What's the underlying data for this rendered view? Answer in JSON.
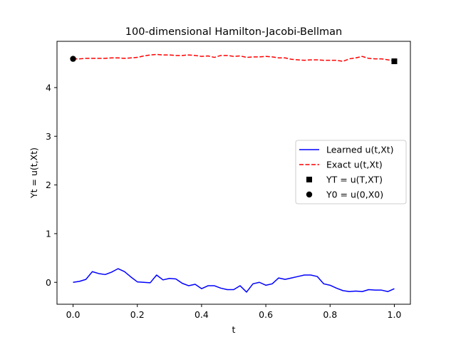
{
  "chart_data": {
    "type": "line",
    "title": "100-dimensional Hamilton-Jacobi-Bellman",
    "xlabel": "t",
    "ylabel": "Yt = u(t,Xt)",
    "xlim": [
      -0.05,
      1.05
    ],
    "ylim": [
      -0.45,
      4.95
    ],
    "xticks": [
      0.0,
      0.2,
      0.4,
      0.6,
      0.8,
      1.0
    ],
    "xtick_labels": [
      "0.0",
      "0.2",
      "0.4",
      "0.6",
      "0.8",
      "1.0"
    ],
    "yticks": [
      0,
      1,
      2,
      3,
      4
    ],
    "ytick_labels": [
      "0",
      "1",
      "2",
      "3",
      "4"
    ],
    "grid": false,
    "legend_position": "center-right",
    "x": [
      0.0,
      0.02,
      0.04,
      0.06,
      0.08,
      0.1,
      0.12,
      0.14,
      0.16,
      0.18,
      0.2,
      0.22,
      0.24,
      0.26,
      0.28,
      0.3,
      0.32,
      0.34,
      0.36,
      0.38,
      0.4,
      0.42,
      0.44,
      0.46,
      0.48,
      0.5,
      0.52,
      0.54,
      0.56,
      0.58,
      0.6,
      0.62,
      0.64,
      0.66,
      0.68,
      0.7,
      0.72,
      0.74,
      0.76,
      0.78,
      0.8,
      0.82,
      0.84,
      0.86,
      0.88,
      0.9,
      0.92,
      0.94,
      0.96,
      0.98,
      1.0
    ],
    "series": [
      {
        "name": "Learned u(t,Xt)",
        "color": "#0000ff",
        "style": "solid",
        "values": [
          0.0,
          0.02,
          0.06,
          0.22,
          0.18,
          0.16,
          0.21,
          0.28,
          0.22,
          0.11,
          0.01,
          0.0,
          -0.01,
          0.15,
          0.05,
          0.08,
          0.07,
          -0.02,
          -0.07,
          -0.04,
          -0.13,
          -0.07,
          -0.07,
          -0.12,
          -0.15,
          -0.15,
          -0.07,
          -0.2,
          -0.03,
          0.0,
          -0.06,
          -0.03,
          0.09,
          0.06,
          0.09,
          0.12,
          0.15,
          0.15,
          0.12,
          -0.03,
          -0.06,
          -0.12,
          -0.17,
          -0.19,
          -0.18,
          -0.19,
          -0.15,
          -0.16,
          -0.16,
          -0.19,
          -0.13
        ]
      },
      {
        "name": "Exact u(t,Xt)",
        "color": "#ff0000",
        "style": "dashed",
        "values": [
          4.59,
          4.59,
          4.6,
          4.6,
          4.6,
          4.6,
          4.61,
          4.61,
          4.6,
          4.61,
          4.62,
          4.65,
          4.67,
          4.68,
          4.67,
          4.67,
          4.66,
          4.66,
          4.67,
          4.66,
          4.64,
          4.65,
          4.62,
          4.66,
          4.66,
          4.64,
          4.65,
          4.62,
          4.63,
          4.63,
          4.64,
          4.63,
          4.61,
          4.61,
          4.58,
          4.57,
          4.56,
          4.57,
          4.57,
          4.56,
          4.56,
          4.56,
          4.54,
          4.59,
          4.61,
          4.64,
          4.6,
          4.59,
          4.59,
          4.57,
          4.55
        ]
      }
    ],
    "markers": [
      {
        "name": "YT = u(T,XT)",
        "shape": "square",
        "color": "#000000",
        "x": 1.0,
        "y": 4.54
      },
      {
        "name": "Y0 = u(0,X0)",
        "shape": "circle",
        "color": "#000000",
        "x": 0.0,
        "y": 4.59
      }
    ]
  }
}
